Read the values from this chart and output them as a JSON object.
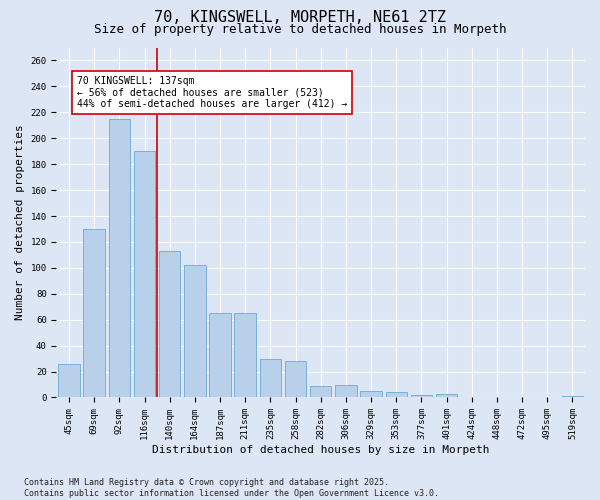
{
  "title": "70, KINGSWELL, MORPETH, NE61 2TZ",
  "subtitle": "Size of property relative to detached houses in Morpeth",
  "xlabel": "Distribution of detached houses by size in Morpeth",
  "ylabel": "Number of detached properties",
  "categories": [
    "45sqm",
    "69sqm",
    "92sqm",
    "116sqm",
    "140sqm",
    "164sqm",
    "187sqm",
    "211sqm",
    "235sqm",
    "258sqm",
    "282sqm",
    "306sqm",
    "329sqm",
    "353sqm",
    "377sqm",
    "401sqm",
    "424sqm",
    "448sqm",
    "472sqm",
    "495sqm",
    "519sqm"
  ],
  "values": [
    26,
    130,
    215,
    190,
    113,
    102,
    65,
    65,
    30,
    28,
    9,
    10,
    5,
    4,
    2,
    3,
    0,
    0,
    0,
    0,
    1
  ],
  "bar_color": "#b8d0ea",
  "bar_edge_color": "#6aaad4",
  "vline_color": "#cc0000",
  "vline_index": 3.5,
  "annotation_text": "70 KINGSWELL: 137sqm\n← 56% of detached houses are smaller (523)\n44% of semi-detached houses are larger (412) →",
  "annotation_box_facecolor": "#ffffff",
  "annotation_box_edgecolor": "#cc0000",
  "ylim": [
    0,
    270
  ],
  "yticks": [
    0,
    20,
    40,
    60,
    80,
    100,
    120,
    140,
    160,
    180,
    200,
    220,
    240,
    260
  ],
  "background_color": "#dce6f5",
  "grid_color": "#ffffff",
  "footnote": "Contains HM Land Registry data © Crown copyright and database right 2025.\nContains public sector information licensed under the Open Government Licence v3.0.",
  "title_fontsize": 11,
  "subtitle_fontsize": 9,
  "label_fontsize": 8,
  "tick_fontsize": 6.5,
  "annot_fontsize": 7,
  "footnote_fontsize": 6
}
